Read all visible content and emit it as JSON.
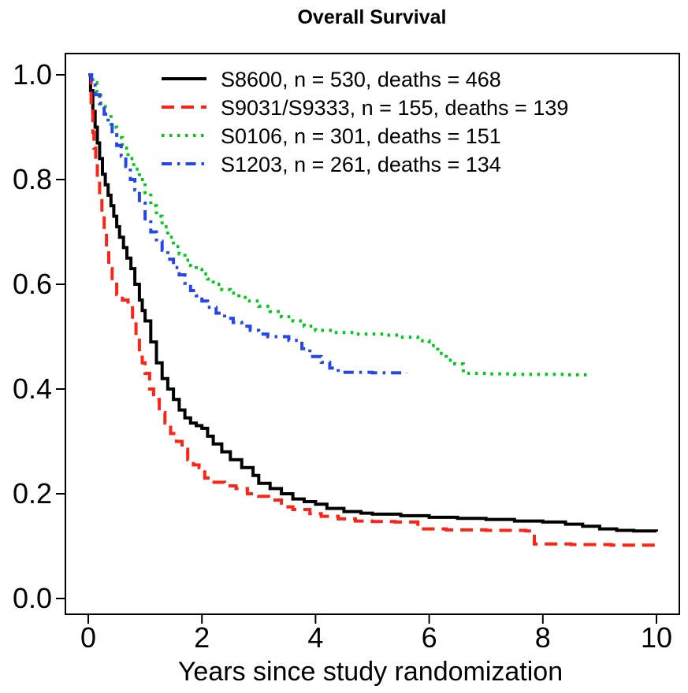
{
  "title": "Overall Survival",
  "chart_data": {
    "type": "line",
    "subtype": "kaplan-meier-step",
    "title": "Overall Survival",
    "xlabel": "Years since study randomization",
    "ylabel": "",
    "xlim": [
      0,
      10
    ],
    "ylim": [
      0.0,
      1.0
    ],
    "x_ticks": [
      0,
      2,
      4,
      6,
      8,
      10
    ],
    "y_ticks": [
      "0.0",
      "0.2",
      "0.4",
      "0.6",
      "0.8",
      "1.0"
    ],
    "grid": false,
    "legend_position": "top-left-inside",
    "series": [
      {
        "name": "S8600",
        "label": "S8600, n = 530, deaths = 468",
        "n": 530,
        "deaths": 468,
        "color": "#000000",
        "line_style": "solid",
        "points": [
          [
            0,
            1.0
          ],
          [
            0.04,
            0.97
          ],
          [
            0.08,
            0.93
          ],
          [
            0.12,
            0.9
          ],
          [
            0.16,
            0.87
          ],
          [
            0.2,
            0.84
          ],
          [
            0.25,
            0.81
          ],
          [
            0.3,
            0.79
          ],
          [
            0.35,
            0.77
          ],
          [
            0.4,
            0.75
          ],
          [
            0.45,
            0.73
          ],
          [
            0.5,
            0.71
          ],
          [
            0.55,
            0.69
          ],
          [
            0.62,
            0.67
          ],
          [
            0.68,
            0.65
          ],
          [
            0.75,
            0.63
          ],
          [
            0.82,
            0.6
          ],
          [
            0.9,
            0.57
          ],
          [
            0.95,
            0.55
          ],
          [
            1.0,
            0.53
          ],
          [
            1.1,
            0.49
          ],
          [
            1.2,
            0.45
          ],
          [
            1.3,
            0.42
          ],
          [
            1.4,
            0.4
          ],
          [
            1.5,
            0.38
          ],
          [
            1.6,
            0.36
          ],
          [
            1.7,
            0.345
          ],
          [
            1.8,
            0.335
          ],
          [
            1.9,
            0.33
          ],
          [
            2.0,
            0.325
          ],
          [
            2.1,
            0.31
          ],
          [
            2.2,
            0.295
          ],
          [
            2.35,
            0.28
          ],
          [
            2.5,
            0.265
          ],
          [
            2.7,
            0.25
          ],
          [
            2.9,
            0.235
          ],
          [
            3.0,
            0.22
          ],
          [
            3.2,
            0.21
          ],
          [
            3.4,
            0.2
          ],
          [
            3.6,
            0.19
          ],
          [
            3.8,
            0.185
          ],
          [
            4.0,
            0.18
          ],
          [
            4.2,
            0.172
          ],
          [
            4.5,
            0.166
          ],
          [
            4.8,
            0.163
          ],
          [
            5.0,
            0.161
          ],
          [
            5.5,
            0.158
          ],
          [
            6.0,
            0.155
          ],
          [
            6.5,
            0.153
          ],
          [
            7.0,
            0.151
          ],
          [
            7.5,
            0.148
          ],
          [
            8.0,
            0.146
          ],
          [
            8.4,
            0.142
          ],
          [
            8.7,
            0.138
          ],
          [
            9.0,
            0.133
          ],
          [
            9.3,
            0.13
          ],
          [
            9.6,
            0.129
          ],
          [
            10.0,
            0.128
          ]
        ]
      },
      {
        "name": "S9031/S9333",
        "label": "S9031/S9333, n = 155, deaths = 139",
        "n": 155,
        "deaths": 139,
        "color": "#fb2417",
        "line_style": "dashed",
        "points": [
          [
            0,
            1.0
          ],
          [
            0.05,
            0.94
          ],
          [
            0.08,
            0.89
          ],
          [
            0.1,
            0.86
          ],
          [
            0.13,
            0.83
          ],
          [
            0.16,
            0.8
          ],
          [
            0.2,
            0.77
          ],
          [
            0.24,
            0.73
          ],
          [
            0.28,
            0.7
          ],
          [
            0.32,
            0.66
          ],
          [
            0.36,
            0.63
          ],
          [
            0.42,
            0.6
          ],
          [
            0.5,
            0.58
          ],
          [
            0.6,
            0.57
          ],
          [
            0.7,
            0.555
          ],
          [
            0.78,
            0.53
          ],
          [
            0.84,
            0.5
          ],
          [
            0.9,
            0.47
          ],
          [
            0.95,
            0.45
          ],
          [
            1.0,
            0.43
          ],
          [
            1.08,
            0.4
          ],
          [
            1.15,
            0.38
          ],
          [
            1.25,
            0.355
          ],
          [
            1.35,
            0.335
          ],
          [
            1.45,
            0.315
          ],
          [
            1.55,
            0.3
          ],
          [
            1.65,
            0.285
          ],
          [
            1.75,
            0.265
          ],
          [
            1.85,
            0.255
          ],
          [
            1.95,
            0.25
          ],
          [
            2.05,
            0.23
          ],
          [
            2.15,
            0.222
          ],
          [
            2.4,
            0.215
          ],
          [
            2.6,
            0.21
          ],
          [
            2.8,
            0.2
          ],
          [
            3.0,
            0.195
          ],
          [
            3.2,
            0.188
          ],
          [
            3.4,
            0.175
          ],
          [
            3.6,
            0.17
          ],
          [
            3.9,
            0.162
          ],
          [
            4.1,
            0.157
          ],
          [
            4.4,
            0.152
          ],
          [
            4.7,
            0.148
          ],
          [
            5.0,
            0.147
          ],
          [
            5.4,
            0.146
          ],
          [
            5.8,
            0.133
          ],
          [
            6.3,
            0.131
          ],
          [
            7.0,
            0.13
          ],
          [
            7.7,
            0.129
          ],
          [
            7.85,
            0.104
          ],
          [
            8.5,
            0.103
          ],
          [
            9.2,
            0.102
          ],
          [
            10.0,
            0.101
          ]
        ]
      },
      {
        "name": "S0106",
        "label": "S0106, n = 301, deaths = 151",
        "n": 301,
        "deaths": 151,
        "color": "#00c81e",
        "line_style": "dotted",
        "points": [
          [
            0,
            1.0
          ],
          [
            0.08,
            0.985
          ],
          [
            0.15,
            0.965
          ],
          [
            0.22,
            0.945
          ],
          [
            0.3,
            0.925
          ],
          [
            0.4,
            0.9
          ],
          [
            0.5,
            0.88
          ],
          [
            0.6,
            0.86
          ],
          [
            0.7,
            0.84
          ],
          [
            0.8,
            0.82
          ],
          [
            0.9,
            0.8
          ],
          [
            1.0,
            0.775
          ],
          [
            1.1,
            0.75
          ],
          [
            1.2,
            0.73
          ],
          [
            1.3,
            0.71
          ],
          [
            1.4,
            0.69
          ],
          [
            1.5,
            0.672
          ],
          [
            1.6,
            0.658
          ],
          [
            1.7,
            0.646
          ],
          [
            1.8,
            0.636
          ],
          [
            1.9,
            0.628
          ],
          [
            2.0,
            0.62
          ],
          [
            2.1,
            0.61
          ],
          [
            2.2,
            0.6
          ],
          [
            2.35,
            0.59
          ],
          [
            2.5,
            0.583
          ],
          [
            2.65,
            0.575
          ],
          [
            2.8,
            0.568
          ],
          [
            3.0,
            0.558
          ],
          [
            3.2,
            0.548
          ],
          [
            3.4,
            0.538
          ],
          [
            3.6,
            0.53
          ],
          [
            3.8,
            0.52
          ],
          [
            4.0,
            0.512
          ],
          [
            4.3,
            0.508
          ],
          [
            4.7,
            0.505
          ],
          [
            5.2,
            0.503
          ],
          [
            5.5,
            0.499
          ],
          [
            5.8,
            0.492
          ],
          [
            6.0,
            0.483
          ],
          [
            6.15,
            0.468
          ],
          [
            6.3,
            0.455
          ],
          [
            6.45,
            0.448
          ],
          [
            6.6,
            0.43
          ],
          [
            7.0,
            0.429
          ],
          [
            7.5,
            0.428
          ],
          [
            8.0,
            0.428
          ],
          [
            8.4,
            0.427
          ],
          [
            8.78,
            0.427
          ]
        ]
      },
      {
        "name": "S1203",
        "label": "S1203, n = 261, deaths = 134",
        "n": 261,
        "deaths": 134,
        "color": "#2546e8",
        "line_style": "dashdot",
        "points": [
          [
            0,
            1.0
          ],
          [
            0.06,
            0.98
          ],
          [
            0.12,
            0.962
          ],
          [
            0.2,
            0.945
          ],
          [
            0.28,
            0.925
          ],
          [
            0.35,
            0.905
          ],
          [
            0.42,
            0.885
          ],
          [
            0.5,
            0.865
          ],
          [
            0.58,
            0.845
          ],
          [
            0.66,
            0.825
          ],
          [
            0.74,
            0.8
          ],
          [
            0.82,
            0.78
          ],
          [
            0.9,
            0.755
          ],
          [
            1.0,
            0.725
          ],
          [
            1.1,
            0.7
          ],
          [
            1.2,
            0.682
          ],
          [
            1.3,
            0.665
          ],
          [
            1.4,
            0.648
          ],
          [
            1.5,
            0.632
          ],
          [
            1.6,
            0.618
          ],
          [
            1.7,
            0.602
          ],
          [
            1.8,
            0.588
          ],
          [
            1.9,
            0.578
          ],
          [
            2.0,
            0.568
          ],
          [
            2.1,
            0.556
          ],
          [
            2.25,
            0.545
          ],
          [
            2.4,
            0.535
          ],
          [
            2.55,
            0.527
          ],
          [
            2.7,
            0.52
          ],
          [
            2.85,
            0.512
          ],
          [
            3.0,
            0.505
          ],
          [
            3.16,
            0.5
          ],
          [
            3.53,
            0.493
          ],
          [
            3.76,
            0.477
          ],
          [
            3.9,
            0.462
          ],
          [
            4.1,
            0.451
          ],
          [
            4.25,
            0.44
          ],
          [
            4.4,
            0.432
          ],
          [
            5.0,
            0.431
          ],
          [
            5.6,
            0.43
          ]
        ]
      }
    ]
  }
}
